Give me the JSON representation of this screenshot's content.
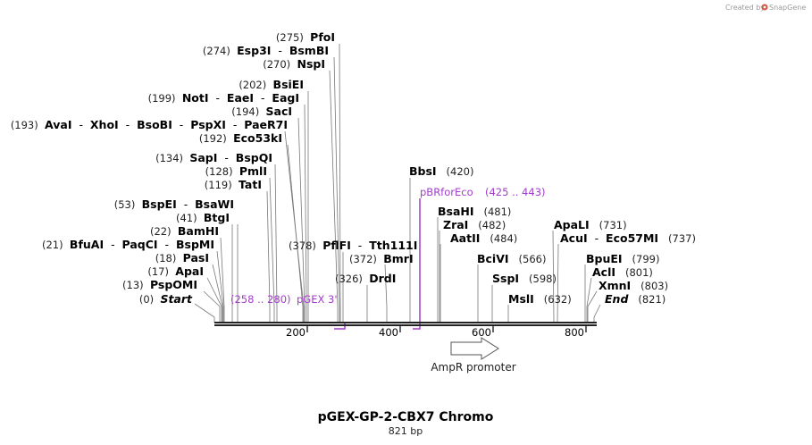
{
  "credit": {
    "prefix": "Created by",
    "brand": "SnapGene"
  },
  "title": "pGEX-GP-2-CBX7 Chromo",
  "length_label": "821 bp",
  "colors": {
    "primer": "#a23cc9",
    "backbone": "#222222",
    "leader": "#777777"
  },
  "scale_ticks": [
    "200",
    "400",
    "600",
    "800"
  ],
  "feature": {
    "name": "AmpR promoter",
    "icon": "arrow-right-icon"
  },
  "primers": [
    {
      "name": "pGEX 3'",
      "range": "(258 .. 280)"
    },
    {
      "name": "pBRforEco",
      "range": "(425 .. 443)"
    }
  ],
  "left_labels": [
    {
      "pos": "(275)",
      "enzymes": [
        "PfoI"
      ],
      "italic": false
    },
    {
      "pos": "(274)",
      "enzymes": [
        "Esp3I",
        "BsmBI"
      ],
      "italic": false
    },
    {
      "pos": "(270)",
      "enzymes": [
        "NspI"
      ],
      "italic": false
    },
    {
      "pos": "(202)",
      "enzymes": [
        "BsiEI"
      ],
      "italic": false
    },
    {
      "pos": "(199)",
      "enzymes": [
        "NotI",
        "EaeI",
        "EagI"
      ],
      "italic": false
    },
    {
      "pos": "(194)",
      "enzymes": [
        "SacI"
      ],
      "italic": false
    },
    {
      "pos": "(193)",
      "enzymes": [
        "AvaI",
        "XhoI",
        "BsoBI",
        "PspXI",
        "PaeR7I"
      ],
      "italic": false
    },
    {
      "pos": "(192)",
      "enzymes": [
        "Eco53kI"
      ],
      "italic": false
    },
    {
      "pos": "(134)",
      "enzymes": [
        "SapI",
        "BspQI"
      ],
      "italic": false
    },
    {
      "pos": "(128)",
      "enzymes": [
        "PmlI"
      ],
      "italic": false
    },
    {
      "pos": "(119)",
      "enzymes": [
        "TatI"
      ],
      "italic": false
    },
    {
      "pos": "(53)",
      "enzymes": [
        "BspEI",
        "BsaWI"
      ],
      "italic": false
    },
    {
      "pos": "(41)",
      "enzymes": [
        "BtgI"
      ],
      "italic": false
    },
    {
      "pos": "(22)",
      "enzymes": [
        "BamHI"
      ],
      "italic": false
    },
    {
      "pos": "(21)",
      "enzymes": [
        "BfuAI",
        "PaqCI",
        "BspMI"
      ],
      "italic": false
    },
    {
      "pos": "(18)",
      "enzymes": [
        "PasI"
      ],
      "italic": false
    },
    {
      "pos": "(17)",
      "enzymes": [
        "ApaI"
      ],
      "italic": false
    },
    {
      "pos": "(13)",
      "enzymes": [
        "PspOMI"
      ],
      "italic": false
    },
    {
      "pos": "(0)",
      "enzymes": [
        "Start"
      ],
      "italic": true
    }
  ],
  "right_labels": [
    {
      "pos": "(378)",
      "enzymes": [
        "PflFI",
        "Tth111I"
      ],
      "italic": false
    },
    {
      "pos": "(372)",
      "enzymes": [
        "BmrI"
      ],
      "italic": false
    },
    {
      "pos": "(326)",
      "enzymes": [
        "DrdI"
      ],
      "italic": false
    },
    {
      "pos": "(420)",
      "enzymes": [
        "BbsI"
      ],
      "italic": false
    },
    {
      "pos": "(481)",
      "enzymes": [
        "BsaHI"
      ],
      "italic": false
    },
    {
      "pos": "(482)",
      "enzymes": [
        "ZraI"
      ],
      "italic": false
    },
    {
      "pos": "(484)",
      "enzymes": [
        "AatII"
      ],
      "italic": false
    },
    {
      "pos": "(566)",
      "enzymes": [
        "BciVI"
      ],
      "italic": false
    },
    {
      "pos": "(598)",
      "enzymes": [
        "SspI"
      ],
      "italic": false
    },
    {
      "pos": "(632)",
      "enzymes": [
        "MslI"
      ],
      "italic": false
    },
    {
      "pos": "(731)",
      "enzymes": [
        "ApaLI"
      ],
      "italic": false
    },
    {
      "pos": "(737)",
      "enzymes": [
        "AcuI",
        "Eco57MI"
      ],
      "italic": false
    },
    {
      "pos": "(799)",
      "enzymes": [
        "BpuEI"
      ],
      "italic": false
    },
    {
      "pos": "(801)",
      "enzymes": [
        "AclI"
      ],
      "italic": false
    },
    {
      "pos": "(803)",
      "enzymes": [
        "XmnI"
      ],
      "italic": false
    },
    {
      "pos": "(821)",
      "enzymes": [
        "End"
      ],
      "italic": true
    }
  ]
}
